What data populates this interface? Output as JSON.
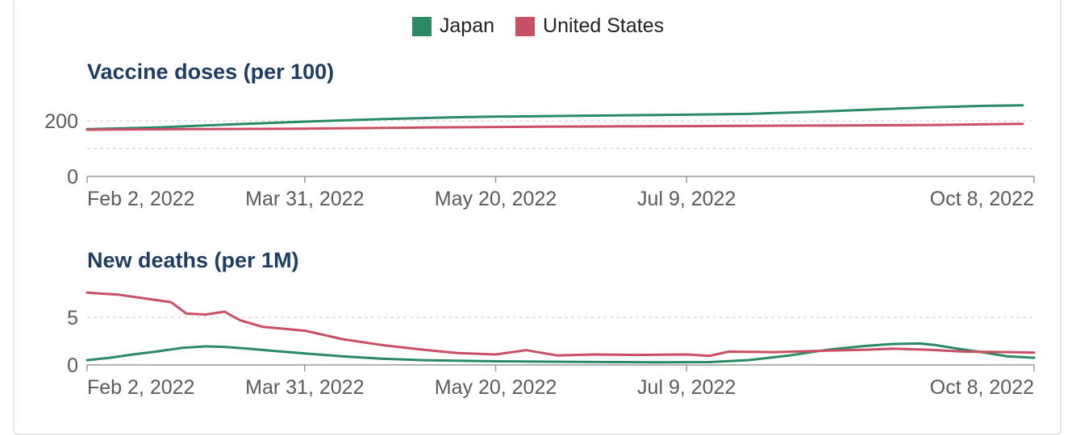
{
  "legend": {
    "items": [
      {
        "label": "Japan",
        "color": "#2a8a64"
      },
      {
        "label": "United States",
        "color": "#c84f64"
      }
    ]
  },
  "chart_data": [
    {
      "type": "line",
      "title": "Vaccine doses (per 100)",
      "x_tick_labels": [
        "Feb 2, 2022",
        "Mar 31, 2022",
        "May 20, 2022",
        "Jul 9, 2022",
        "Oct 8, 2022"
      ],
      "x_ticks": [
        "2022-02-02",
        "2022-03-31",
        "2022-05-20",
        "2022-07-09",
        "2022-10-08"
      ],
      "xlim": [
        "2022-02-02",
        "2022-10-08"
      ],
      "ylim": [
        0,
        260
      ],
      "y_ticks": [
        0,
        200
      ],
      "grid_lines": [
        0,
        100,
        200
      ],
      "series": [
        {
          "name": "Japan",
          "color": "#2a8a64",
          "points": [
            [
              "2022-02-02",
              170
            ],
            [
              "2022-02-20",
              176
            ],
            [
              "2022-03-10",
              186
            ],
            [
              "2022-03-31",
              197
            ],
            [
              "2022-04-20",
              206
            ],
            [
              "2022-05-10",
              213
            ],
            [
              "2022-05-20",
              215
            ],
            [
              "2022-06-10",
              218
            ],
            [
              "2022-07-09",
              222
            ],
            [
              "2022-07-25",
              225
            ],
            [
              "2022-08-10",
              232
            ],
            [
              "2022-08-25",
              240
            ],
            [
              "2022-09-10",
              248
            ],
            [
              "2022-09-25",
              254
            ],
            [
              "2022-10-05",
              256
            ]
          ]
        },
        {
          "name": "United States",
          "color": "#c84f64",
          "points": [
            [
              "2022-02-02",
              168
            ],
            [
              "2022-03-01",
              170
            ],
            [
              "2022-03-31",
              172
            ],
            [
              "2022-05-01",
              176
            ],
            [
              "2022-06-01",
              179
            ],
            [
              "2022-07-09",
              181
            ],
            [
              "2022-08-10",
              183
            ],
            [
              "2022-09-10",
              185
            ],
            [
              "2022-10-05",
              189
            ]
          ]
        }
      ]
    },
    {
      "type": "line",
      "title": "New deaths (per 1M)",
      "x_tick_labels": [
        "Feb 2, 2022",
        "Mar 31, 2022",
        "May 20, 2022",
        "Jul 9, 2022",
        "Oct 8, 2022"
      ],
      "x_ticks": [
        "2022-02-02",
        "2022-03-31",
        "2022-05-20",
        "2022-07-09",
        "2022-10-08"
      ],
      "xlim": [
        "2022-02-02",
        "2022-10-08"
      ],
      "ylim": [
        0,
        7.5
      ],
      "y_ticks": [
        0,
        5
      ],
      "grid_lines": [
        0,
        5
      ],
      "series": [
        {
          "name": "Japan",
          "color": "#2a8a64",
          "points": [
            [
              "2022-02-02",
              0.5
            ],
            [
              "2022-02-08",
              0.75
            ],
            [
              "2022-02-14",
              1.1
            ],
            [
              "2022-02-20",
              1.4
            ],
            [
              "2022-02-27",
              1.8
            ],
            [
              "2022-03-05",
              1.95
            ],
            [
              "2022-03-10",
              1.9
            ],
            [
              "2022-03-15",
              1.75
            ],
            [
              "2022-03-22",
              1.5
            ],
            [
              "2022-03-31",
              1.2
            ],
            [
              "2022-04-10",
              0.9
            ],
            [
              "2022-04-20",
              0.65
            ],
            [
              "2022-05-01",
              0.5
            ],
            [
              "2022-05-20",
              0.38
            ],
            [
              "2022-06-10",
              0.32
            ],
            [
              "2022-07-01",
              0.28
            ],
            [
              "2022-07-15",
              0.3
            ],
            [
              "2022-07-25",
              0.5
            ],
            [
              "2022-08-05",
              1.0
            ],
            [
              "2022-08-15",
              1.6
            ],
            [
              "2022-08-25",
              2.0
            ],
            [
              "2022-09-01",
              2.2
            ],
            [
              "2022-09-08",
              2.25
            ],
            [
              "2022-09-12",
              2.1
            ],
            [
              "2022-09-18",
              1.7
            ],
            [
              "2022-09-25",
              1.3
            ],
            [
              "2022-10-01",
              0.9
            ],
            [
              "2022-10-08",
              0.75
            ]
          ]
        },
        {
          "name": "United States",
          "color": "#c84f64",
          "points": [
            [
              "2022-02-02",
              7.6
            ],
            [
              "2022-02-10",
              7.4
            ],
            [
              "2022-02-17",
              7.0
            ],
            [
              "2022-02-24",
              6.6
            ],
            [
              "2022-02-28",
              5.4
            ],
            [
              "2022-03-05",
              5.3
            ],
            [
              "2022-03-10",
              5.6
            ],
            [
              "2022-03-14",
              4.7
            ],
            [
              "2022-03-20",
              4.0
            ],
            [
              "2022-03-31",
              3.6
            ],
            [
              "2022-04-10",
              2.7
            ],
            [
              "2022-04-20",
              2.1
            ],
            [
              "2022-05-01",
              1.6
            ],
            [
              "2022-05-10",
              1.25
            ],
            [
              "2022-05-20",
              1.1
            ],
            [
              "2022-05-28",
              1.55
            ],
            [
              "2022-06-05",
              1.0
            ],
            [
              "2022-06-15",
              1.1
            ],
            [
              "2022-06-25",
              1.05
            ],
            [
              "2022-07-09",
              1.1
            ],
            [
              "2022-07-15",
              0.95
            ],
            [
              "2022-07-20",
              1.4
            ],
            [
              "2022-08-01",
              1.35
            ],
            [
              "2022-08-15",
              1.5
            ],
            [
              "2022-08-25",
              1.6
            ],
            [
              "2022-09-01",
              1.7
            ],
            [
              "2022-09-10",
              1.6
            ],
            [
              "2022-09-20",
              1.4
            ],
            [
              "2022-10-01",
              1.35
            ],
            [
              "2022-10-08",
              1.3
            ]
          ]
        }
      ]
    }
  ]
}
